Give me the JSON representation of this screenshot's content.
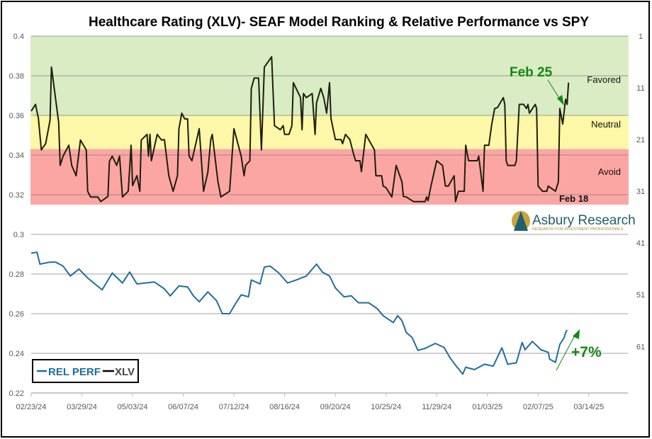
{
  "chart_data": {
    "type": "line",
    "title": "Healthcare Rating (XLV)- SEAF Model Ranking & Relative Performance vs SPY",
    "left_axis": {
      "ylim": [
        0.22,
        0.4
      ],
      "ticks": [
        "0.22",
        "0.24",
        "0.26",
        "0.28",
        "0.3",
        "0.32",
        "0.34",
        "0.36",
        "0.38",
        "0.4"
      ]
    },
    "right_axis": {
      "reversed": true,
      "ylim": [
        1,
        70
      ],
      "ticks": [
        "1",
        "11",
        "21",
        "31",
        "41",
        "51",
        "61"
      ]
    },
    "x_axis": {
      "type": "date",
      "range": [
        "2024-02-23",
        "2025-04-10"
      ],
      "ticks": [
        "02/23/24",
        "03/29/24",
        "05/03/24",
        "06/07/24",
        "07/12/24",
        "08/16/24",
        "09/20/24",
        "10/25/24",
        "11/29/24",
        "01/03/25",
        "02/07/25",
        "03/14/25"
      ]
    },
    "grid": true,
    "bands": [
      {
        "label": "Favored",
        "from": 0.4,
        "to": 0.36,
        "color": "#d9ecc4"
      },
      {
        "label": "Neutral",
        "from": 0.36,
        "to": 0.343,
        "color": "#fdf7a8"
      },
      {
        "label": "Avoid",
        "from": 0.343,
        "to": 0.315,
        "color": "#fca6a4"
      }
    ],
    "legend": {
      "placement": "bottom-left",
      "entries": [
        "REL PERF",
        "XLV"
      ]
    },
    "annotations": {
      "feb25": "Feb 25",
      "feb18": "Feb 18",
      "gain": "+7%"
    },
    "series": [
      {
        "name": "REL PERF",
        "axis": "left",
        "color": "#1f6e9c",
        "points": [
          [
            "2024-02-23",
            0.2905
          ],
          [
            "2024-02-27",
            0.291
          ],
          [
            "2024-02-29",
            0.285
          ],
          [
            "2024-03-07",
            0.286
          ],
          [
            "2024-03-11",
            0.286
          ],
          [
            "2024-03-16",
            0.284
          ],
          [
            "2024-03-21",
            0.279
          ],
          [
            "2024-03-27",
            0.2825
          ],
          [
            "2024-04-02",
            0.278
          ],
          [
            "2024-04-12",
            0.272
          ],
          [
            "2024-04-19",
            0.2805
          ],
          [
            "2024-04-26",
            0.2755
          ],
          [
            "2024-05-01",
            0.281
          ],
          [
            "2024-05-06",
            0.275
          ],
          [
            "2024-05-18",
            0.276
          ],
          [
            "2024-05-25",
            0.2725
          ],
          [
            "2024-05-29",
            0.269
          ],
          [
            "2024-06-04",
            0.274
          ],
          [
            "2024-06-10",
            0.2735
          ],
          [
            "2024-06-14",
            0.269
          ],
          [
            "2024-06-18",
            0.266
          ],
          [
            "2024-06-24",
            0.271
          ],
          [
            "2024-06-30",
            0.2665
          ],
          [
            "2024-07-04",
            0.26
          ],
          [
            "2024-07-09",
            0.26
          ],
          [
            "2024-07-13",
            0.265
          ],
          [
            "2024-07-17",
            0.2695
          ],
          [
            "2024-07-22",
            0.2685
          ],
          [
            "2024-07-24",
            0.277
          ],
          [
            "2024-07-30",
            0.275
          ],
          [
            "2024-08-02",
            0.2835
          ],
          [
            "2024-08-06",
            0.284
          ],
          [
            "2024-08-12",
            0.2805
          ],
          [
            "2024-08-18",
            0.2755
          ],
          [
            "2024-08-24",
            0.277
          ],
          [
            "2024-08-31",
            0.279
          ],
          [
            "2024-09-07",
            0.285
          ],
          [
            "2024-09-11",
            0.281
          ],
          [
            "2024-09-16",
            0.279
          ],
          [
            "2024-09-20",
            0.273
          ],
          [
            "2024-09-26",
            0.2685
          ],
          [
            "2024-10-01",
            0.269
          ],
          [
            "2024-10-06",
            0.2655
          ],
          [
            "2024-10-13",
            0.2655
          ],
          [
            "2024-10-19",
            0.2625
          ],
          [
            "2024-10-23",
            0.259
          ],
          [
            "2024-10-30",
            0.2555
          ],
          [
            "2024-11-02",
            0.259
          ],
          [
            "2024-11-05",
            0.2565
          ],
          [
            "2024-11-08",
            0.2505
          ],
          [
            "2024-11-12",
            0.248
          ],
          [
            "2024-11-16",
            0.2415
          ],
          [
            "2024-11-21",
            0.2425
          ],
          [
            "2024-11-28",
            0.245
          ],
          [
            "2024-12-04",
            0.243
          ],
          [
            "2024-12-08",
            0.238
          ],
          [
            "2024-12-12",
            0.234
          ],
          [
            "2024-12-17",
            0.2295
          ],
          [
            "2024-12-19",
            0.233
          ],
          [
            "2024-12-25",
            0.2318
          ],
          [
            "2025-01-01",
            0.2345
          ],
          [
            "2025-01-07",
            0.2335
          ],
          [
            "2025-01-13",
            0.2428
          ],
          [
            "2025-01-17",
            0.2345
          ],
          [
            "2025-01-23",
            0.2352
          ],
          [
            "2025-01-27",
            0.2455
          ],
          [
            "2025-01-29",
            0.2418
          ],
          [
            "2025-02-03",
            0.246
          ],
          [
            "2025-02-09",
            0.2418
          ],
          [
            "2025-02-14",
            0.2405
          ],
          [
            "2025-02-15",
            0.237
          ],
          [
            "2025-02-19",
            0.2355
          ],
          [
            "2025-02-22",
            0.2445
          ],
          [
            "2025-02-25",
            0.248
          ],
          [
            "2025-02-26",
            0.2505
          ],
          [
            "2025-02-27",
            0.2518
          ]
        ]
      },
      {
        "name": "XLV",
        "axis": "right",
        "color": "#1e1e0e",
        "points": [
          [
            "2024-02-23",
            15.5
          ],
          [
            "2024-02-26",
            14.2
          ],
          [
            "2024-02-28",
            16.9
          ],
          [
            "2024-03-01",
            23
          ],
          [
            "2024-03-04",
            21.8
          ],
          [
            "2024-03-07",
            17.3
          ],
          [
            "2024-03-08",
            7
          ],
          [
            "2024-03-13",
            17.7
          ],
          [
            "2024-03-14",
            26
          ],
          [
            "2024-03-16",
            24.2
          ],
          [
            "2024-03-20",
            22.1
          ],
          [
            "2024-03-22",
            26
          ],
          [
            "2024-03-25",
            28
          ],
          [
            "2024-03-28",
            21.1
          ],
          [
            "2024-04-01",
            23
          ],
          [
            "2024-04-02",
            31
          ],
          [
            "2024-04-04",
            32.1
          ],
          [
            "2024-04-09",
            32.1
          ],
          [
            "2024-04-11",
            33
          ],
          [
            "2024-04-16",
            32
          ],
          [
            "2024-04-17",
            25.2
          ],
          [
            "2024-04-19",
            24.2
          ],
          [
            "2024-04-22",
            26
          ],
          [
            "2024-04-24",
            24.2
          ],
          [
            "2024-04-26",
            32.1
          ],
          [
            "2024-04-30",
            31
          ],
          [
            "2024-05-02",
            22.1
          ],
          [
            "2024-05-03",
            29.9
          ],
          [
            "2024-05-06",
            28
          ],
          [
            "2024-05-08",
            31
          ],
          [
            "2024-05-09",
            21.1
          ],
          [
            "2024-05-13",
            20
          ],
          [
            "2024-05-14",
            24.2
          ],
          [
            "2024-05-15",
            20
          ],
          [
            "2024-05-16",
            25.1
          ],
          [
            "2024-05-20",
            20
          ],
          [
            "2024-05-23",
            21.1
          ],
          [
            "2024-05-25",
            21
          ],
          [
            "2024-05-28",
            28
          ],
          [
            "2024-05-31",
            31
          ],
          [
            "2024-06-03",
            28
          ],
          [
            "2024-06-04",
            18.9
          ],
          [
            "2024-06-06",
            15.9
          ],
          [
            "2024-06-08",
            17
          ],
          [
            "2024-06-10",
            17
          ],
          [
            "2024-06-11",
            24.2
          ],
          [
            "2024-06-13",
            25.1
          ],
          [
            "2024-06-18",
            18.9
          ],
          [
            "2024-06-21",
            31
          ],
          [
            "2024-06-24",
            27.3
          ],
          [
            "2024-06-26",
            21
          ],
          [
            "2024-06-27",
            20
          ],
          [
            "2024-07-01",
            29.2
          ],
          [
            "2024-07-03",
            32.1
          ],
          [
            "2024-07-09",
            31
          ],
          [
            "2024-07-12",
            18.9
          ],
          [
            "2024-07-17",
            24.2
          ],
          [
            "2024-07-19",
            28
          ],
          [
            "2024-07-20",
            26
          ],
          [
            "2024-07-23",
            25.1
          ],
          [
            "2024-07-24",
            11.1
          ],
          [
            "2024-07-26",
            9.1
          ],
          [
            "2024-07-29",
            9.1
          ],
          [
            "2024-07-31",
            23
          ],
          [
            "2024-08-02",
            7
          ],
          [
            "2024-08-07",
            5
          ],
          [
            "2024-08-09",
            18.3
          ],
          [
            "2024-08-13",
            19.1
          ],
          [
            "2024-08-15",
            18.3
          ],
          [
            "2024-08-16",
            20
          ],
          [
            "2024-08-19",
            20
          ],
          [
            "2024-08-21",
            18.3
          ],
          [
            "2024-08-22",
            10
          ],
          [
            "2024-08-27",
            12.9
          ],
          [
            "2024-08-28",
            19.1
          ],
          [
            "2024-08-29",
            12.1
          ],
          [
            "2024-08-31",
            12.9
          ],
          [
            "2024-09-04",
            12.1
          ],
          [
            "2024-09-06",
            20
          ],
          [
            "2024-09-07",
            13.9
          ],
          [
            "2024-09-10",
            11.1
          ],
          [
            "2024-09-12",
            12.9
          ],
          [
            "2024-09-14",
            15.9
          ],
          [
            "2024-09-16",
            10
          ],
          [
            "2024-09-17",
            16.9
          ],
          [
            "2024-09-20",
            21
          ],
          [
            "2024-09-24",
            21
          ],
          [
            "2024-09-25",
            21.8
          ],
          [
            "2024-09-27",
            20
          ],
          [
            "2024-09-30",
            21
          ],
          [
            "2024-10-03",
            24.2
          ],
          [
            "2024-10-04",
            25.1
          ],
          [
            "2024-10-07",
            25.1
          ],
          [
            "2024-10-08",
            27.2
          ],
          [
            "2024-10-11",
            20
          ],
          [
            "2024-10-17",
            23
          ],
          [
            "2024-10-18",
            28
          ],
          [
            "2024-10-22",
            28
          ],
          [
            "2024-10-23",
            30
          ],
          [
            "2024-10-25",
            30.3
          ],
          [
            "2024-10-29",
            32.1
          ],
          [
            "2024-11-01",
            26
          ],
          [
            "2024-11-05",
            29.2
          ],
          [
            "2024-11-06",
            32
          ],
          [
            "2024-11-08",
            32.1
          ],
          [
            "2024-11-13",
            33
          ],
          [
            "2024-11-21",
            33
          ],
          [
            "2024-11-22",
            32.1
          ],
          [
            "2024-11-23",
            32.8
          ],
          [
            "2024-11-25",
            30
          ],
          [
            "2024-11-29",
            25.1
          ],
          [
            "2024-12-03",
            26
          ],
          [
            "2024-12-05",
            30
          ],
          [
            "2024-12-07",
            30
          ],
          [
            "2024-12-11",
            28
          ],
          [
            "2024-12-12",
            33
          ],
          [
            "2024-12-14",
            31
          ],
          [
            "2024-12-18",
            31
          ],
          [
            "2024-12-19",
            22.1
          ],
          [
            "2024-12-21",
            25.1
          ],
          [
            "2024-12-27",
            25.1
          ],
          [
            "2024-12-28",
            24.2
          ],
          [
            "2024-12-31",
            31
          ],
          [
            "2025-01-01",
            22.1
          ],
          [
            "2025-01-04",
            22.1
          ],
          [
            "2025-01-06",
            18
          ],
          [
            "2025-01-08",
            15
          ],
          [
            "2025-01-10",
            14.8
          ],
          [
            "2025-01-14",
            12.9
          ],
          [
            "2025-01-15",
            14.2
          ],
          [
            "2025-01-16",
            25.1
          ],
          [
            "2025-01-17",
            26
          ],
          [
            "2025-01-22",
            26
          ],
          [
            "2025-01-23",
            25.1
          ],
          [
            "2025-01-25",
            14.2
          ],
          [
            "2025-01-28",
            14.2
          ],
          [
            "2025-01-30",
            15
          ],
          [
            "2025-01-31",
            14.2
          ],
          [
            "2025-02-01",
            15.9
          ],
          [
            "2025-02-05",
            14.2
          ],
          [
            "2025-02-06",
            15
          ],
          [
            "2025-02-07",
            30
          ],
          [
            "2025-02-10",
            31
          ],
          [
            "2025-02-13",
            31
          ],
          [
            "2025-02-14",
            30
          ],
          [
            "2025-02-19",
            31
          ],
          [
            "2025-02-21",
            29.2
          ],
          [
            "2025-02-22",
            15
          ],
          [
            "2025-02-24",
            18
          ],
          [
            "2025-02-26",
            13.2
          ],
          [
            "2025-02-27",
            14.2
          ],
          [
            "2025-02-28",
            10
          ]
        ]
      }
    ],
    "logo": {
      "name": "Asbury Research",
      "tagline": "RESEARCH FOR INVESTMENT PROFESSIONALS"
    }
  }
}
